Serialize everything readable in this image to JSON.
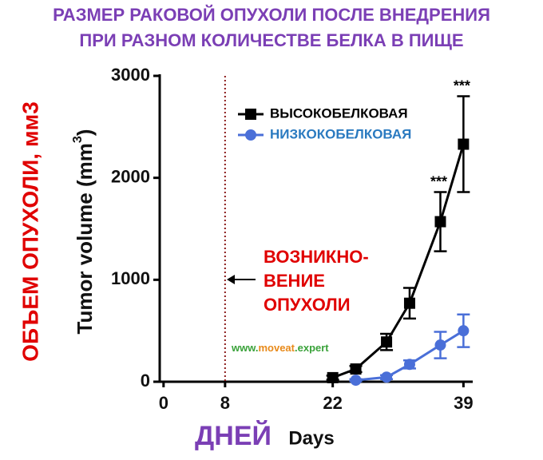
{
  "chart_data": {
    "type": "line",
    "title_lines": [
      "РАЗМЕР РАКОВОЙ ОПУХОЛИ ПОСЛЕ ВНЕДРЕНИЯ",
      "ПРИ РАЗНОМ КОЛИЧЕСТВЕ БЕЛКА В ПИЩЕ"
    ],
    "ylabel_ru": "ОБЪЕМ ОПУХОЛИ, мм3",
    "ylabel": {
      "text": "Tumor volume (mm",
      "sup": "3",
      "end": ")"
    },
    "xlabel_ru": "ДНЕЙ",
    "xlabel": "Days",
    "x": [
      22,
      25,
      29,
      32,
      36,
      39
    ],
    "series": [
      {
        "name": "ВЫСОКОБЕЛКОВАЯ",
        "color": "#000000",
        "marker": "square",
        "values": [
          40,
          125,
          390,
          770,
          1570,
          2330
        ],
        "errors": [
          20,
          30,
          80,
          150,
          290,
          470
        ],
        "significance_labels": [
          null,
          null,
          null,
          null,
          "***",
          "***"
        ]
      },
      {
        "name": "НИЗКОКОБЕЛКОВАЯ",
        "color": "#4a6fd8",
        "marker": "circle",
        "values": [
          null,
          15,
          45,
          170,
          360,
          500
        ],
        "errors": [
          null,
          10,
          20,
          40,
          130,
          160
        ]
      }
    ],
    "xlim": [
      -0.5,
      40
    ],
    "xticks": [
      0,
      8,
      22,
      39
    ],
    "ylim": [
      0,
      3000
    ],
    "yticks": [
      0,
      1000,
      2000,
      3000
    ],
    "onset_x": 8,
    "annotation_lines": [
      "ВОЗНИКНО-",
      "ВЕНИЕ",
      "ОПУХОЛИ"
    ],
    "watermark": [
      "www.",
      "moveat",
      ".expert"
    ]
  }
}
